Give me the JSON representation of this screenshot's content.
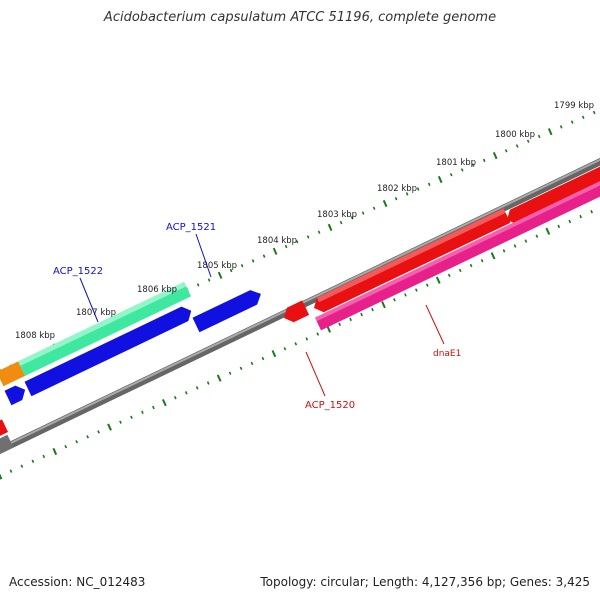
{
  "title": "Acidobacterium capsulatum ATCC 51196, complete genome",
  "footer": {
    "accession": "Accession: NC_012483",
    "summary": "Topology: circular; Length: 4,127,356 bp; Genes: 3,425"
  },
  "colors": {
    "background": "#ffffff",
    "tick": "#1a7a1a",
    "backbone": "#808080",
    "label_blue": "#1010cc",
    "label_red": "#cc1010"
  },
  "scale_labels": [
    "1799 kbp",
    "1800 kbp",
    "1801 kbp",
    "1802 kbp",
    "1803 kbp",
    "1804 kbp",
    "1805 kbp",
    "1806 kbp",
    "1807 kbp",
    "1808 kbp"
  ],
  "genes": [
    {
      "name": "ACP_1522",
      "strand": "forward",
      "color": "#3ee8a0",
      "callout": true
    },
    {
      "name": "ACP_1521",
      "strand": "forward",
      "color": "#1010e0",
      "callout": true
    },
    {
      "name": "ACP_1520",
      "strand": "reverse",
      "color": "#e81010",
      "callout": true
    },
    {
      "name": "dnaE1",
      "strand": "reverse",
      "color": "#e8208a",
      "callout": true
    },
    {
      "name": "upstream-orange",
      "strand": "forward",
      "color": "#f08c10",
      "callout": false
    },
    {
      "name": "reverse-blue-long",
      "strand": "reverse",
      "color": "#1010e0",
      "callout": false
    },
    {
      "name": "reverse-blue-small",
      "strand": "reverse",
      "color": "#1010e0",
      "callout": false
    },
    {
      "name": "reverse-red-long",
      "strand": "reverse",
      "color": "#e81010",
      "callout": false
    },
    {
      "name": "reverse-red-edge",
      "strand": "reverse",
      "color": "#e81010",
      "callout": false
    },
    {
      "name": "left-red-edge",
      "strand": "reverse",
      "color": "#e81010",
      "callout": false
    },
    {
      "name": "left-grey-edge",
      "strand": "reverse",
      "color": "#707070",
      "callout": false
    }
  ]
}
